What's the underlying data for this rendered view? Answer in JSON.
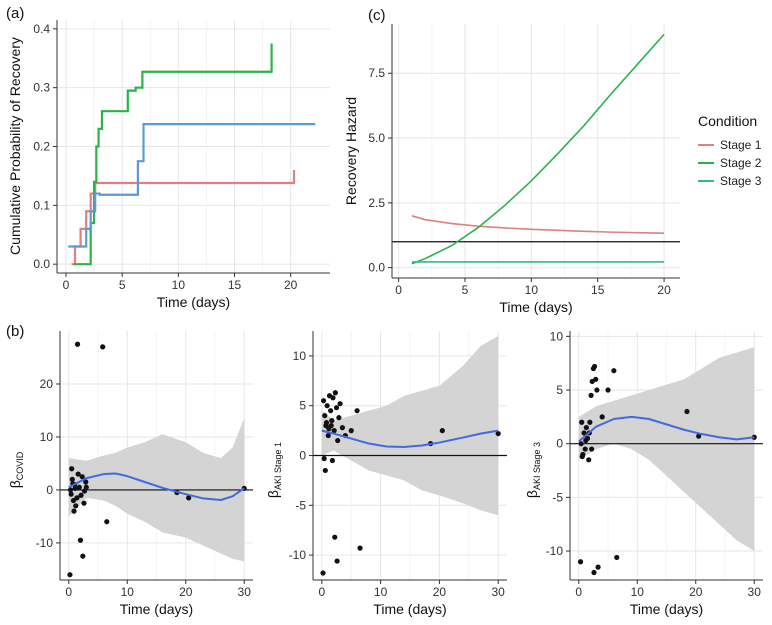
{
  "colors": {
    "stage1": "#e07f7f",
    "stage2": "#2bb34a",
    "stage3": "#5b9bd5",
    "hazard_stage3": "#33b890",
    "loess": "#4169e1",
    "ribbon": "#d4d4d4",
    "grid": "#e6e6e6",
    "points": "#111111"
  },
  "legend": {
    "title": "Condition",
    "items": [
      "Stage 1",
      "Stage 2",
      "Stage 3"
    ]
  },
  "chart_data": [
    {
      "id": "a",
      "panel_label": "(a)",
      "type": "line",
      "step": true,
      "xlabel": "Time (days)",
      "ylabel": "Cumulative Probability of Recovery",
      "xlim": [
        -0.8,
        23.5
      ],
      "ylim": [
        -0.015,
        0.415
      ],
      "xticks": [
        0,
        5,
        10,
        15,
        20
      ],
      "yticks": [
        0.0,
        0.1,
        0.2,
        0.3,
        0.4
      ],
      "ytick_labels": [
        "0.0",
        "0.1",
        "0.2",
        "0.3",
        "0.4"
      ],
      "grid": true,
      "series": [
        {
          "color_key": "stage1",
          "x": [
            0.5,
            0.8,
            1.3,
            1.8,
            2.2,
            2.6,
            20.3,
            20.3
          ],
          "y": [
            0.0,
            0.03,
            0.06,
            0.09,
            0.12,
            0.138,
            0.138,
            0.16
          ]
        },
        {
          "color_key": "stage2",
          "x": [
            0.7,
            1.8,
            2.2,
            2.5,
            2.7,
            2.9,
            3.2,
            5.0,
            5.5,
            6.2,
            6.8,
            18.3,
            18.3
          ],
          "y": [
            0.0,
            0.0,
            0.07,
            0.14,
            0.2,
            0.23,
            0.26,
            0.26,
            0.295,
            0.3,
            0.327,
            0.327,
            0.375
          ]
        },
        {
          "color_key": "stage3",
          "x": [
            0.2,
            1.2,
            1.8,
            2.2,
            2.6,
            3.0,
            6.0,
            6.4,
            6.9,
            22.2
          ],
          "y": [
            0.03,
            0.03,
            0.06,
            0.09,
            0.12,
            0.118,
            0.118,
            0.175,
            0.238,
            0.238
          ]
        }
      ]
    },
    {
      "id": "c",
      "panel_label": "(c)",
      "type": "line",
      "xlabel": "Time (days)",
      "ylabel": "Recovery Hazard",
      "xlim": [
        -0.5,
        21.2
      ],
      "ylim": [
        -0.4,
        9.4
      ],
      "xticks": [
        0,
        5,
        10,
        15,
        20
      ],
      "yticks": [
        0.0,
        2.5,
        5.0,
        7.5
      ],
      "ytick_labels": [
        "0.0",
        "2.5",
        "5.0",
        "7.5"
      ],
      "grid": true,
      "hline": 1,
      "series": [
        {
          "color_key": "stage1",
          "x": [
            1,
            2,
            4,
            6,
            8,
            10,
            12,
            14,
            16,
            18,
            20
          ],
          "y": [
            2.0,
            1.85,
            1.7,
            1.6,
            1.53,
            1.48,
            1.44,
            1.4,
            1.37,
            1.35,
            1.33
          ]
        },
        {
          "color_key": "stage2",
          "x": [
            1,
            2,
            4,
            6,
            8,
            10,
            12,
            14,
            16,
            18,
            20
          ],
          "y": [
            0.15,
            0.35,
            0.85,
            1.55,
            2.4,
            3.35,
            4.4,
            5.5,
            6.7,
            7.85,
            9.0
          ]
        },
        {
          "color_key": "hazard_stage3",
          "x": [
            1,
            20
          ],
          "y": [
            0.22,
            0.22
          ]
        }
      ]
    },
    {
      "id": "b1",
      "panel_label": "(b)",
      "type": "scatter",
      "xlabel": "Time (days)",
      "ylabel": "β",
      "ylabel_sub": "COVID",
      "xlim": [
        -1.5,
        31.5
      ],
      "ylim": [
        -17,
        30
      ],
      "xticks": [
        0,
        10,
        20,
        30
      ],
      "yticks": [
        -10,
        0,
        10,
        20
      ],
      "ytick_labels": [
        "-10",
        "0",
        "10",
        "20"
      ],
      "grid": true,
      "hline": 0,
      "points": [
        [
          0.2,
          -16
        ],
        [
          1.5,
          27.5
        ],
        [
          5.8,
          27
        ],
        [
          0.3,
          0
        ],
        [
          0.6,
          2
        ],
        [
          0.8,
          -2
        ],
        [
          1.0,
          1
        ],
        [
          1.2,
          -3
        ],
        [
          0.5,
          4
        ],
        [
          1.8,
          0.5
        ],
        [
          2.1,
          -1
        ],
        [
          2.3,
          2.5
        ],
        [
          2.6,
          -2.5
        ],
        [
          2.9,
          1.5
        ],
        [
          0.9,
          -4
        ],
        [
          1.6,
          3
        ],
        [
          2.0,
          -9.5
        ],
        [
          2.4,
          -12.5
        ],
        [
          3.0,
          0.5
        ],
        [
          6.5,
          -6
        ],
        [
          18.5,
          -0.5
        ],
        [
          20.5,
          -1.5
        ],
        [
          30,
          0.3
        ],
        [
          0.4,
          -0.8
        ],
        [
          1.1,
          0.3
        ],
        [
          1.4,
          -1.5
        ],
        [
          2.7,
          -0.2
        ],
        [
          0.7,
          1.2
        ]
      ],
      "smooth": {
        "x": [
          0,
          3,
          6,
          8,
          10,
          13,
          16,
          20,
          23,
          26,
          28,
          30
        ],
        "y": [
          0.5,
          2.2,
          3.0,
          3.1,
          2.6,
          1.5,
          0.4,
          -0.8,
          -1.6,
          -1.9,
          -1.2,
          0.3
        ]
      },
      "band_upper": [
        6,
        5.5,
        6.5,
        7,
        8,
        9,
        10.5,
        9,
        7,
        6,
        8,
        13.5
      ],
      "band_lower": [
        -5,
        -1.5,
        -2,
        -3,
        -4.5,
        -6,
        -8,
        -9,
        -10.5,
        -12,
        -13,
        -13.5
      ]
    },
    {
      "id": "b2",
      "type": "scatter",
      "xlabel": "Time (days)",
      "ylabel": "β",
      "ylabel_sub": "AKI Stage 1",
      "xlim": [
        -1.5,
        31.5
      ],
      "ylim": [
        -12.5,
        12.5
      ],
      "xticks": [
        0,
        10,
        20,
        30
      ],
      "yticks": [
        -10,
        -5,
        0,
        5,
        10
      ],
      "ytick_labels": [
        "-10",
        "-5",
        "0",
        "5",
        "10"
      ],
      "grid": true,
      "hline": 0,
      "points": [
        [
          0.2,
          -11.8
        ],
        [
          0.3,
          5.5
        ],
        [
          0.5,
          4
        ],
        [
          0.7,
          3
        ],
        [
          0.9,
          5
        ],
        [
          1.1,
          2
        ],
        [
          1.3,
          6
        ],
        [
          1.5,
          4.5
        ],
        [
          1.7,
          3.5
        ],
        [
          1.9,
          5.8
        ],
        [
          2.1,
          2.5
        ],
        [
          2.3,
          6.3
        ],
        [
          2.5,
          4.8
        ],
        [
          2.7,
          1.5
        ],
        [
          2.9,
          3.8
        ],
        [
          3.1,
          5.2
        ],
        [
          0.4,
          -0.3
        ],
        [
          0.6,
          -1.5
        ],
        [
          1.8,
          -0.5
        ],
        [
          2.2,
          -8.2
        ],
        [
          2.6,
          -10.6
        ],
        [
          3.5,
          2.8
        ],
        [
          4,
          2
        ],
        [
          5,
          2.5
        ],
        [
          6,
          4.5
        ],
        [
          6.5,
          -9.3
        ],
        [
          18.5,
          1.2
        ],
        [
          20.5,
          2.5
        ],
        [
          30,
          2.2
        ],
        [
          0.8,
          3.3
        ],
        [
          1.2,
          2.7
        ],
        [
          1.6,
          3
        ]
      ],
      "smooth": {
        "x": [
          0,
          2,
          5,
          8,
          11,
          14,
          17,
          20,
          24,
          27,
          30
        ],
        "y": [
          2.5,
          2.2,
          1.7,
          1.2,
          0.9,
          0.85,
          1.0,
          1.3,
          1.8,
          2.2,
          2.5
        ]
      },
      "band_upper": [
        4.5,
        3.5,
        4,
        4.5,
        5,
        6,
        6.5,
        7,
        9,
        11,
        12
      ],
      "band_lower": [
        0,
        0.5,
        -0.5,
        -1.5,
        -2,
        -2.5,
        -3.5,
        -4,
        -4.8,
        -5.5,
        -6
      ]
    },
    {
      "id": "b3",
      "type": "scatter",
      "xlabel": "Time (days)",
      "ylabel": "β",
      "ylabel_sub": "AKI Stage 3",
      "xlim": [
        -1.5,
        31.5
      ],
      "ylim": [
        -12.7,
        10.5
      ],
      "xticks": [
        0,
        10,
        20,
        30
      ],
      "yticks": [
        -10,
        -5,
        0,
        5,
        10
      ],
      "ytick_labels": [
        "-10",
        "-5",
        "0",
        "5",
        "10"
      ],
      "grid": true,
      "hline": 0,
      "points": [
        [
          0.3,
          -11
        ],
        [
          0.5,
          2
        ],
        [
          0.7,
          -1
        ],
        [
          0.9,
          1
        ],
        [
          1.1,
          -0.5
        ],
        [
          1.3,
          1.5
        ],
        [
          1.5,
          0.5
        ],
        [
          1.7,
          -1.5
        ],
        [
          1.9,
          2
        ],
        [
          2.1,
          4.5
        ],
        [
          2.3,
          5.8
        ],
        [
          2.5,
          7
        ],
        [
          2.7,
          7.2
        ],
        [
          2.9,
          6
        ],
        [
          3.1,
          5
        ],
        [
          3.3,
          -11.5
        ],
        [
          2.6,
          -12
        ],
        [
          4,
          2.5
        ],
        [
          5,
          5
        ],
        [
          6,
          6.8
        ],
        [
          6.5,
          -10.6
        ],
        [
          18.5,
          3
        ],
        [
          20.5,
          0.7
        ],
        [
          30,
          0.6
        ],
        [
          0.4,
          0
        ],
        [
          0.6,
          -1.2
        ],
        [
          1.2,
          0.3
        ],
        [
          1.8,
          1
        ],
        [
          2.2,
          -0.5
        ]
      ],
      "smooth": {
        "x": [
          0,
          3,
          6,
          9,
          12,
          15,
          18,
          21,
          24,
          27,
          30
        ],
        "y": [
          0.2,
          1.6,
          2.3,
          2.5,
          2.3,
          1.8,
          1.3,
          0.9,
          0.6,
          0.4,
          0.6
        ]
      },
      "band_upper": [
        2.5,
        3.5,
        4,
        4.5,
        5,
        5.5,
        6,
        7,
        8,
        8.5,
        9
      ],
      "band_lower": [
        -1.5,
        -0.5,
        0,
        -0.5,
        -1.5,
        -3,
        -4.5,
        -6,
        -7.5,
        -9,
        -10
      ]
    }
  ]
}
